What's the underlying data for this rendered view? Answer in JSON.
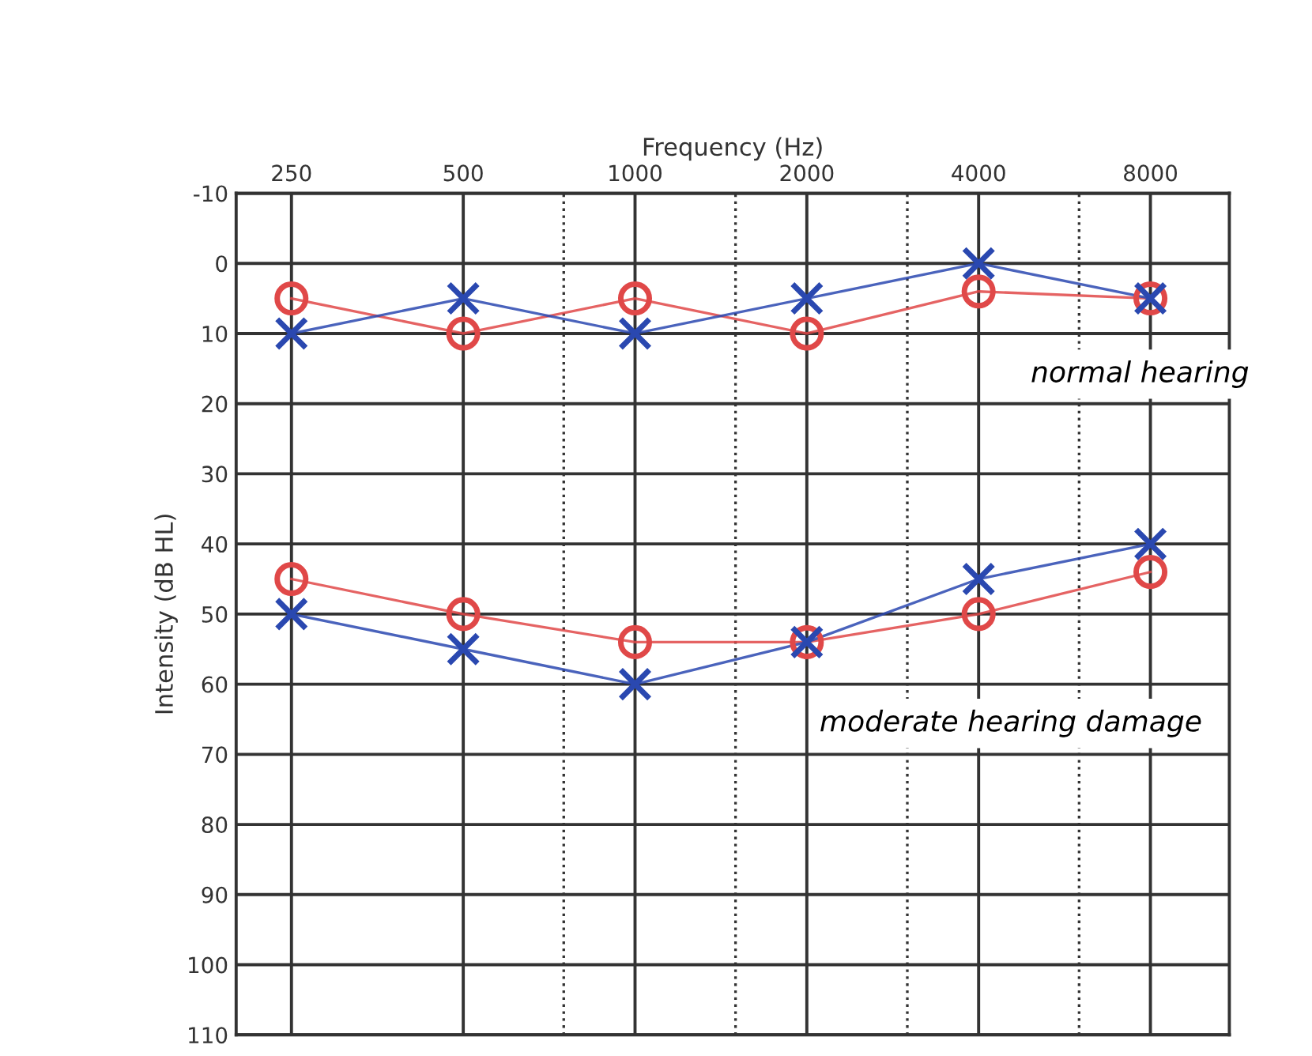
{
  "chart_data": {
    "type": "line",
    "xlabel": "Frequency (Hz)",
    "ylabel": "Intensity (dB HL)",
    "log": "x",
    "x": [
      250,
      500,
      1000,
      2000,
      4000,
      8000
    ],
    "series": [
      {
        "color": "#e04848",
        "marker": "circle",
        "values": [
          5,
          10,
          5,
          10,
          4,
          5
        ]
      },
      {
        "color": "#2a48b0",
        "marker": "cross",
        "values": [
          10,
          5,
          10,
          5,
          0,
          5
        ]
      },
      {
        "color": "#e04848",
        "marker": "circle",
        "values": [
          45,
          50,
          54,
          54,
          50,
          44
        ]
      },
      {
        "color": "#2a48b0",
        "marker": "cross",
        "values": [
          50,
          55,
          60,
          54,
          45,
          40
        ]
      }
    ],
    "xlim": [
      200,
      11000
    ],
    "xticks": [
      250,
      500,
      1000,
      2000,
      4000,
      8000
    ],
    "ylim": [
      110,
      -10
    ],
    "yticks": [
      -10,
      0,
      10,
      20,
      30,
      40,
      50,
      60,
      70,
      80,
      90,
      100,
      110
    ],
    "grid": true,
    "ref_lines": [
      {
        "axis": "x",
        "value": 750,
        "line_style": "dotted"
      },
      {
        "axis": "x",
        "value": 1500,
        "line_style": "dotted"
      },
      {
        "axis": "x",
        "value": 3000,
        "line_style": "dotted"
      },
      {
        "axis": "x",
        "value": 6000,
        "line_style": "dotted"
      }
    ],
    "annotations": [
      "normal hearing",
      "moderate hearing damage"
    ]
  }
}
